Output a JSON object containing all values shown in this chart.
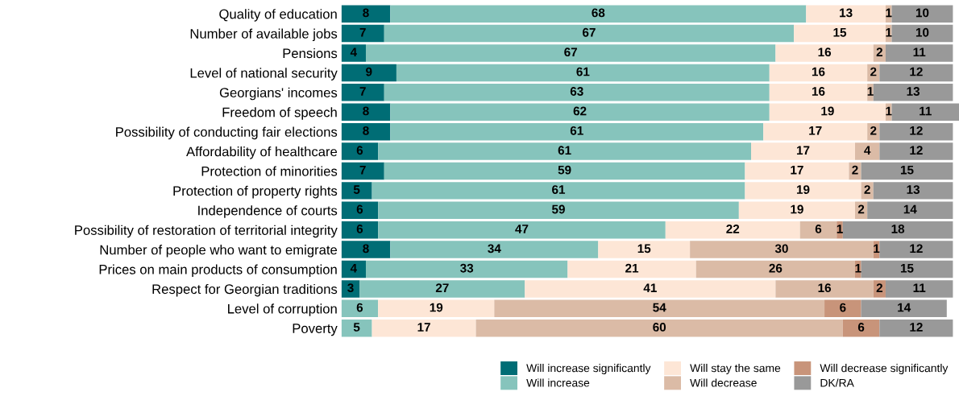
{
  "chart_data": {
    "type": "bar",
    "orientation": "horizontal",
    "stacked": true,
    "data_labels": true,
    "legend": "bottom",
    "grid": false,
    "tick_labels": "y",
    "categories": [
      "Quality of education",
      "Number of available jobs",
      "Pensions",
      "Level of national security",
      "Georgians' incomes",
      "Freedom of speech",
      "Possibility of conducting fair elections",
      "Affordability of healthcare",
      "Protection of minorities",
      "Protection of property rights",
      "Independence of courts",
      "Possibility of restoration of territorial integrity",
      "Number of people who want to emigrate",
      "Prices on main products of consumption",
      "Respect for Georgian traditions",
      "Level of corruption",
      "Poverty"
    ],
    "series": [
      {
        "name": "Will increase significantly",
        "color": "#006d75",
        "values": [
          8,
          7,
          4,
          9,
          7,
          8,
          8,
          6,
          7,
          5,
          6,
          6,
          8,
          4,
          3,
          null,
          null
        ]
      },
      {
        "name": "Will increase",
        "color": "#86c4bc",
        "values": [
          68,
          67,
          67,
          61,
          63,
          62,
          61,
          61,
          59,
          61,
          59,
          47,
          34,
          33,
          27,
          6,
          5
        ]
      },
      {
        "name": "Will stay the same",
        "color": "#fde6d6",
        "values": [
          13,
          15,
          16,
          16,
          16,
          19,
          17,
          17,
          17,
          19,
          19,
          22,
          15,
          21,
          41,
          19,
          17
        ]
      },
      {
        "name": "Will decrease",
        "color": "#dbbba6",
        "values": [
          1,
          1,
          2,
          2,
          1,
          1,
          2,
          4,
          2,
          2,
          2,
          6,
          30,
          26,
          16,
          54,
          60
        ]
      },
      {
        "name": "Will decrease significantly",
        "color": "#c8947a",
        "values": [
          null,
          null,
          null,
          null,
          null,
          null,
          null,
          null,
          null,
          null,
          null,
          1,
          1,
          1,
          2,
          6,
          6
        ]
      },
      {
        "name": "DK/RA",
        "color": "#999999",
        "values": [
          10,
          10,
          11,
          12,
          13,
          11,
          12,
          12,
          15,
          13,
          14,
          18,
          12,
          15,
          11,
          14,
          12
        ]
      }
    ]
  }
}
